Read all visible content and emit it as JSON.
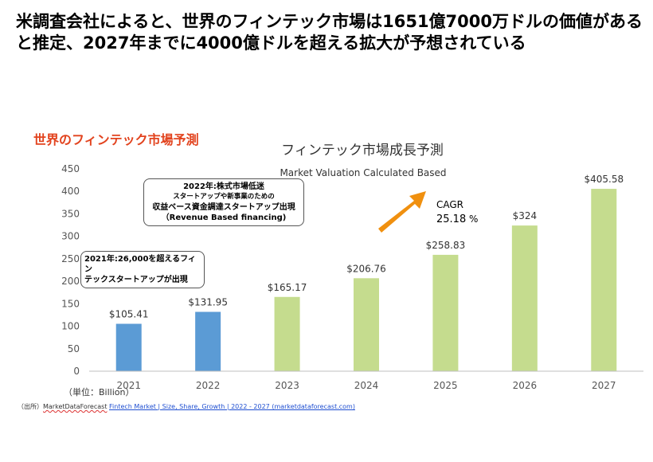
{
  "headline": {
    "line1": "米調査会社によると、世界のフィンテック市場は1651億7000万ドルの価値がある",
    "line2": "と推定、2027年までに4000億ドルを超える拡大が予想されている"
  },
  "section_label": "世界のフィンテック市場予測",
  "callouts": {
    "y2022": {
      "line1": "2022年:株式市場低迷",
      "line2": "スタートアップや新事業のための",
      "line3": "収益ベース資金調達スタートアップ出現",
      "line4": "（Revenue Based financing)"
    },
    "y2021": {
      "line1": "2021年:26,000を超えるフィン",
      "line2": "テックスタートアップが出現"
    }
  },
  "cagr": {
    "label": "CAGR",
    "value": "25.18",
    "unit": "%"
  },
  "unit_note": "（単位：Billion）",
  "source": {
    "prefix": "（出所）",
    "publisher": "MarketDataForecast",
    "link_text": "Fintech Market | Size, Share, Growth | 2022 - 2027 (marketdataforecast.com)"
  },
  "colors": {
    "blue": "#5b9bd5",
    "green": "#c5dc8e",
    "arrow": "#f0900f",
    "accent": "#e2431e"
  },
  "chart_data": {
    "type": "bar",
    "title": "フィンテック市場成長予測",
    "subtitle": "Market Valuation Calculated Based",
    "categories": [
      "2021",
      "2022",
      "2023",
      "2024",
      "2025",
      "2026",
      "2027"
    ],
    "values": [
      105.41,
      131.95,
      165.17,
      206.76,
      258.83,
      324,
      405.58
    ],
    "data_labels": [
      "$105.41",
      "$131.95",
      "$165.17",
      "$206.76",
      "$258.83",
      "$324",
      "$405.58"
    ],
    "bar_colors": [
      "#5b9bd5",
      "#5b9bd5",
      "#c5dc8e",
      "#c5dc8e",
      "#c5dc8e",
      "#c5dc8e",
      "#c5dc8e"
    ],
    "yticks": [
      0,
      50,
      100,
      150,
      200,
      250,
      300,
      350,
      400,
      450
    ],
    "ylim": [
      0,
      450
    ],
    "grid": false
  }
}
